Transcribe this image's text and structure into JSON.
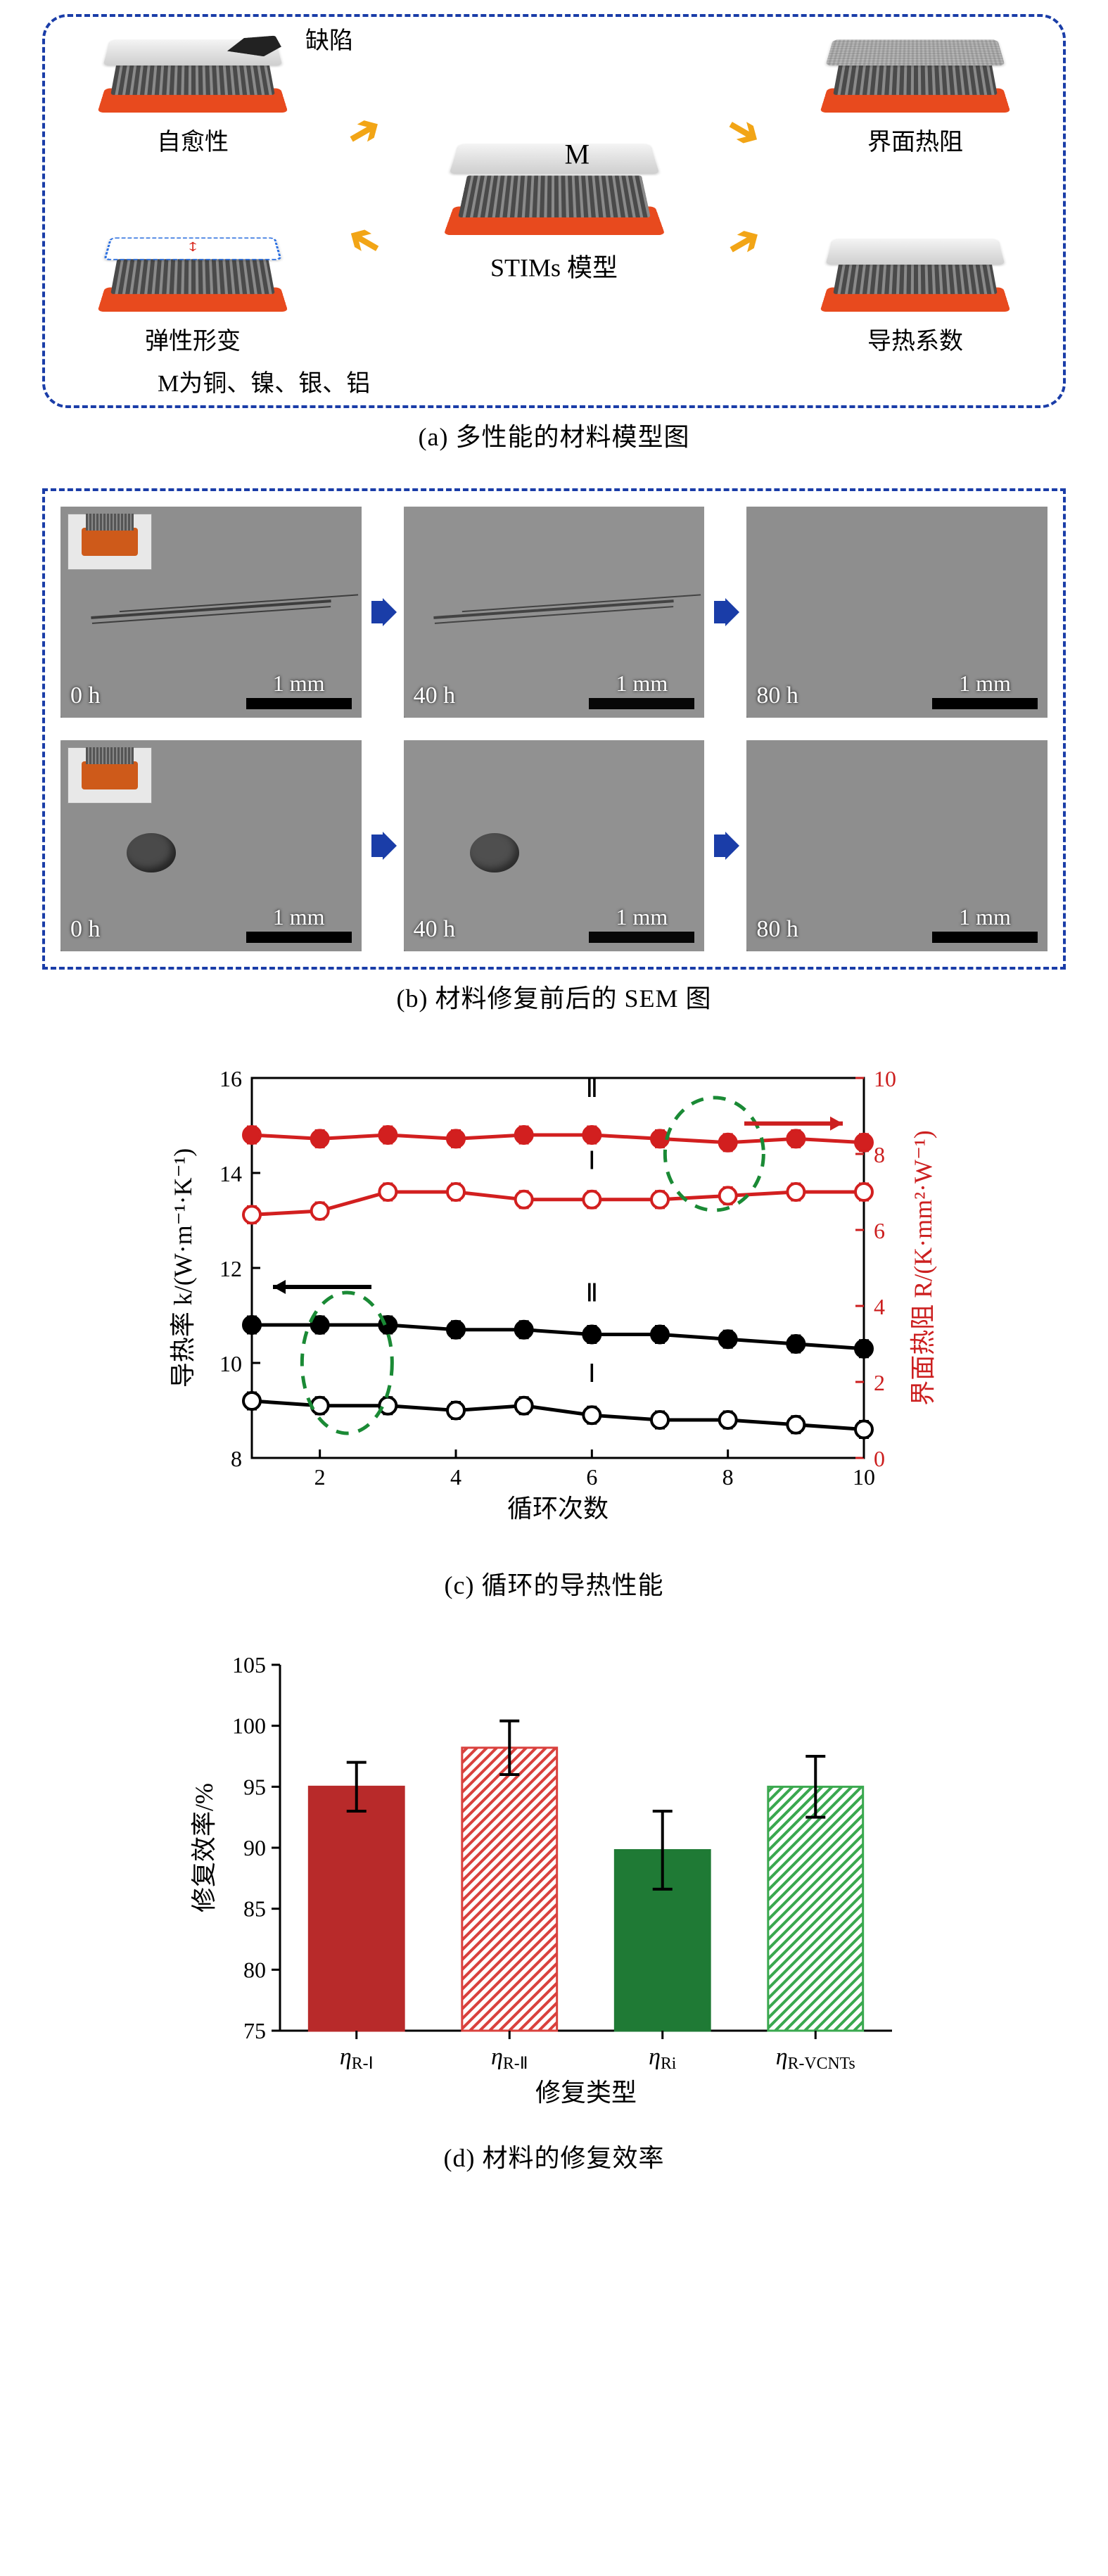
{
  "panel_a": {
    "caption": "(a) 多性能的材料模型图",
    "center_label": "STIMs 模型",
    "center_M": "M",
    "tl_label": "自愈性",
    "tr_label": "界面热阻",
    "bl_label": "弹性形变",
    "br_label": "导热系数",
    "defect_label": "缺陷",
    "subnote": "M为铜、镍、银、铝",
    "border_color": "#1a3da8",
    "arrow_color": "#f2a516",
    "base_color": "#e84a1e"
  },
  "panel_b": {
    "caption": "(b) 材料修复前后的 SEM 图",
    "times": [
      "0 h",
      "40 h",
      "80 h"
    ],
    "scale_label": "1 mm",
    "arrow_color": "#1a3da8",
    "row1_flaw": "crack",
    "row2_flaw": "hole"
  },
  "panel_c": {
    "caption": "(c) 循环的导热性能",
    "xlabel": "循环次数",
    "ylabel_left": "导热率 k/(W·m⁻¹·K⁻¹)",
    "ylabel_right": "界面热阻 R/(K·mm²·W⁻¹)",
    "x_ticks": [
      2,
      4,
      6,
      8,
      10
    ],
    "yl_ticks": [
      8,
      10,
      12,
      14,
      16
    ],
    "yr_ticks": [
      0,
      2,
      4,
      6,
      8,
      10
    ],
    "xlim": [
      1,
      10
    ],
    "ylim_left": [
      8,
      16
    ],
    "ylim_right": [
      0,
      10
    ],
    "annot_I": "Ⅰ",
    "annot_II": "Ⅱ",
    "colors": {
      "kI": "#000000",
      "kI_fill": "#ffffff",
      "kII": "#000000",
      "RI": "#d21f1f",
      "RI_fill": "#ffffff",
      "RII": "#d21f1f",
      "circle": "#1a8a35",
      "grid": "#ffffff"
    },
    "series": {
      "k_II": [
        10.8,
        10.8,
        10.8,
        10.7,
        10.7,
        10.6,
        10.6,
        10.5,
        10.4,
        10.3
      ],
      "k_I": [
        9.2,
        9.1,
        9.1,
        9.0,
        9.1,
        8.9,
        8.8,
        8.8,
        8.7,
        8.6
      ],
      "R_II": [
        8.5,
        8.4,
        8.5,
        8.4,
        8.5,
        8.5,
        8.4,
        8.3,
        8.4,
        8.3
      ],
      "R_I": [
        6.4,
        6.5,
        7.0,
        7.0,
        6.8,
        6.8,
        6.8,
        6.9,
        7.0,
        7.0
      ]
    },
    "err": 0.2
  },
  "panel_d": {
    "caption": "(d) 材料的修复效率",
    "xlabel": "修复类型",
    "ylabel": "修复效率/%",
    "ylim": [
      75,
      105
    ],
    "ytick_step": 5,
    "categories": [
      "ηR-Ⅰ",
      "ηR-Ⅱ",
      "ηRi",
      "ηR-VCNTs"
    ],
    "cat_html": [
      "<tspan font-style='italic'>η</tspan><tspan class='sub' baseline-shift='-6'>R-Ⅰ</tspan>",
      "<tspan font-style='italic'>η</tspan><tspan class='sub' baseline-shift='-6'>R-Ⅱ</tspan>",
      "<tspan font-style='italic'>η</tspan><tspan class='sub' baseline-shift='-6'>Ri</tspan>",
      "<tspan font-style='italic'>η</tspan><tspan class='sub' baseline-shift='-6'>R-VCNTs</tspan>"
    ],
    "values": [
      95,
      98.2,
      89.8,
      95.0
    ],
    "err": [
      2.0,
      2.2,
      3.2,
      2.5
    ],
    "bar_style": [
      "solid",
      "hatched",
      "solid",
      "hatched"
    ],
    "colors": {
      "bar1": "#b82a2a",
      "bar2": "#d9413d",
      "bar3": "#1f7a35",
      "bar4": "#3aa84f",
      "hatch_bg": "#ffffff",
      "axis": "#000000"
    }
  }
}
